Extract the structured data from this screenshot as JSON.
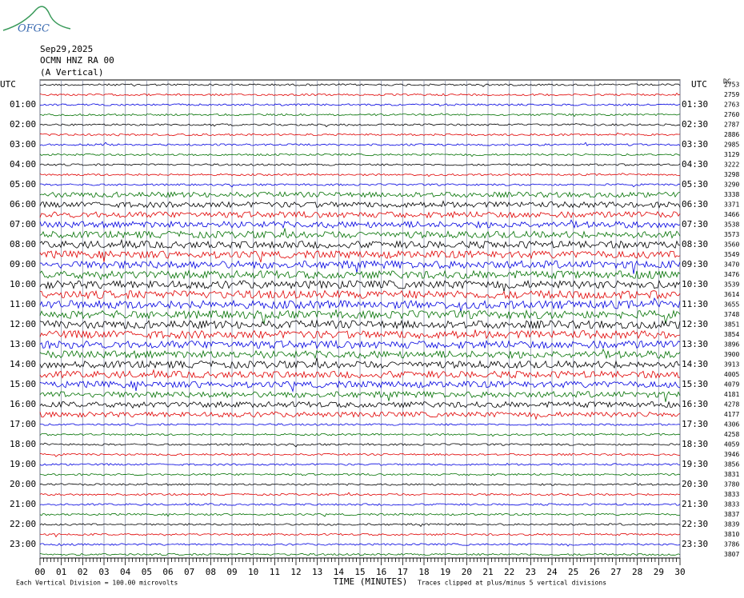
{
  "header": {
    "logo": "OFGC",
    "date": "Sep29,2025",
    "station": "OCMN HNZ RA 00",
    "component": "(A Vertical)",
    "left_unit": "UTC",
    "right_unit": "UTC",
    "dc_label": "DC"
  },
  "left_labels": [
    "01:00",
    "02:00",
    "03:00",
    "04:00",
    "05:00",
    "06:00",
    "07:00",
    "08:00",
    "09:00",
    "10:00",
    "11:00",
    "12:00",
    "13:00",
    "14:00",
    "15:00",
    "16:00",
    "17:00",
    "18:00",
    "19:00",
    "20:00",
    "21:00",
    "22:00",
    "23:00"
  ],
  "right_labels": [
    "01:30",
    "02:30",
    "03:30",
    "04:30",
    "05:30",
    "06:30",
    "07:30",
    "08:30",
    "09:30",
    "10:30",
    "11:30",
    "12:30",
    "13:30",
    "14:30",
    "15:30",
    "16:30",
    "17:30",
    "18:30",
    "19:30",
    "20:30",
    "21:30",
    "22:30",
    "23:30"
  ],
  "trace_means": [
    2753,
    2759,
    2763,
    2760,
    2787,
    2886,
    2985,
    3129,
    3222,
    3298,
    3290,
    3338,
    3371,
    3466,
    3538,
    3573,
    3560,
    3549,
    3470,
    3476,
    3539,
    3614,
    3655,
    3748,
    3851,
    3854,
    3896,
    3900,
    3913,
    4005,
    4079,
    4181,
    4278,
    4177,
    4306,
    4258,
    4059,
    3946,
    3856,
    3831,
    3780,
    3833,
    3833,
    3837,
    3839,
    3810,
    3786,
    3807
  ],
  "x_labels": [
    "00",
    "01",
    "02",
    "03",
    "04",
    "05",
    "06",
    "07",
    "08",
    "09",
    "10",
    "11",
    "12",
    "13",
    "14",
    "15",
    "16",
    "17",
    "18",
    "19",
    "20",
    "21",
    "22",
    "23",
    "24",
    "25",
    "26",
    "27",
    "28",
    "29",
    "30"
  ],
  "footer": {
    "scale": "Each Vertical Division =  100.00 microvolts",
    "x_title": "TIME (MINUTES)",
    "clip_note": "Traces clipped at plus/minus 5 vertical divisions"
  }
}
